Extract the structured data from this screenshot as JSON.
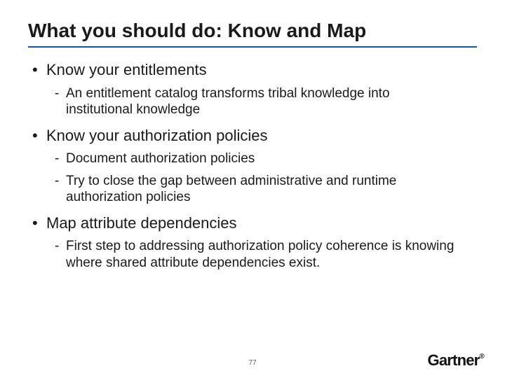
{
  "title": {
    "text": "What you should do: Know and Map",
    "underline_color": "#0f5a9e",
    "fontsize": 28,
    "color": "#1a1a1a"
  },
  "bullets": [
    {
      "text": "Know your entitlements",
      "sub": [
        {
          "text": "An entitlement catalog transforms tribal knowledge into institutional knowledge"
        }
      ]
    },
    {
      "text": "Know your authorization policies",
      "sub": [
        {
          "text": "Document authorization policies"
        },
        {
          "text": "Try to close the gap between administrative and runtime authorization policies"
        }
      ]
    },
    {
      "text": "Map attribute dependencies",
      "sub": [
        {
          "text": "First step to addressing authorization policy coherence is knowing where shared attribute dependencies exist."
        }
      ]
    }
  ],
  "page_number": "77",
  "logo_text": "Gartner",
  "body_fontsize_lvl1": 22,
  "body_fontsize_lvl2": 19,
  "body_color": "#1a1a1a",
  "background_color": "#ffffff"
}
